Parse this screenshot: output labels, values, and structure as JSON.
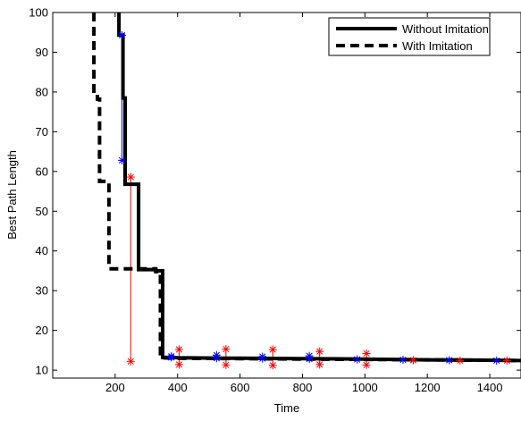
{
  "chart_data": {
    "type": "line",
    "title": "",
    "xlabel": "Time",
    "ylabel": "Best Path Length",
    "xlim": [
      0,
      1500
    ],
    "ylim": [
      8,
      100
    ],
    "xticks": [
      200,
      400,
      600,
      800,
      1000,
      1200,
      1400
    ],
    "yticks": [
      10,
      20,
      30,
      40,
      50,
      60,
      70,
      80,
      90,
      100
    ],
    "grid": false,
    "legend_position": "top-right",
    "series": [
      {
        "name": "Without Imitation",
        "style": "solid",
        "color": "#000000",
        "x": [
          212,
          212,
          225,
          225,
          232,
          232,
          260,
          260,
          275,
          275,
          300,
          300,
          330,
          330,
          352,
          352,
          380,
          400,
          600,
          800,
          1000,
          1200,
          1400,
          1500
        ],
        "y": [
          100,
          94.3,
          94.3,
          78.5,
          78.5,
          56.8,
          56.8,
          56.8,
          56.8,
          35.3,
          35.3,
          35.3,
          35.3,
          35,
          35,
          13.2,
          13.2,
          13.1,
          13,
          12.9,
          12.8,
          12.6,
          12.5,
          12.4
        ]
      },
      {
        "name": "With Imitation",
        "style": "dashed",
        "color": "#000000",
        "x": [
          132,
          132,
          143,
          143,
          150,
          150,
          165,
          165,
          180,
          180,
          250,
          250,
          330,
          330,
          345,
          345,
          400,
          600,
          800,
          1000,
          1200,
          1400,
          1500
        ],
        "y": [
          100,
          79.5,
          79.5,
          78.2,
          78.2,
          57.5,
          57.5,
          57.5,
          57.5,
          35.5,
          35.5,
          35.5,
          35.5,
          34.8,
          34.8,
          13.1,
          13.0,
          12.9,
          12.8,
          12.7,
          12.6,
          12.5,
          12.4
        ]
      }
    ],
    "markers": {
      "blue": {
        "color": "#0000ff",
        "points": [
          [
            222,
            94.3
          ],
          [
            222,
            62.8
          ],
          [
            380,
            13.2
          ],
          [
            380,
            13.5
          ],
          [
            525,
            13.0
          ],
          [
            525,
            13.8
          ],
          [
            672,
            12.9
          ],
          [
            672,
            13.4
          ],
          [
            822,
            12.8
          ],
          [
            822,
            13.6
          ],
          [
            975,
            12.7
          ],
          [
            1122,
            12.6
          ],
          [
            1270,
            12.5
          ],
          [
            1422,
            12.4
          ]
        ]
      },
      "red": {
        "color": "#ff0000",
        "points": [
          [
            250,
            58.6
          ],
          [
            250,
            12.2
          ],
          [
            405,
            15.2
          ],
          [
            405,
            11.4
          ],
          [
            555,
            15.3
          ],
          [
            555,
            11.3
          ],
          [
            705,
            15.2
          ],
          [
            705,
            11.2
          ],
          [
            855,
            14.7
          ],
          [
            855,
            11.4
          ],
          [
            1005,
            14.2
          ],
          [
            1005,
            11.3
          ],
          [
            1155,
            12.5
          ],
          [
            1305,
            12.4
          ],
          [
            1455,
            12.4
          ]
        ]
      }
    },
    "red_vertical_segments": [
      [
        250,
        12.2,
        58.6
      ],
      [
        405,
        11.4,
        15.2
      ],
      [
        555,
        11.3,
        15.3
      ],
      [
        705,
        11.2,
        15.2
      ],
      [
        855,
        11.4,
        14.7
      ],
      [
        1005,
        11.3,
        14.2
      ]
    ],
    "blue_vertical_segments": [
      [
        222,
        62.8,
        94.3
      ],
      [
        380,
        13.2,
        13.5
      ],
      [
        525,
        13.0,
        13.8
      ],
      [
        672,
        12.9,
        13.4
      ],
      [
        822,
        12.8,
        13.6
      ]
    ]
  }
}
